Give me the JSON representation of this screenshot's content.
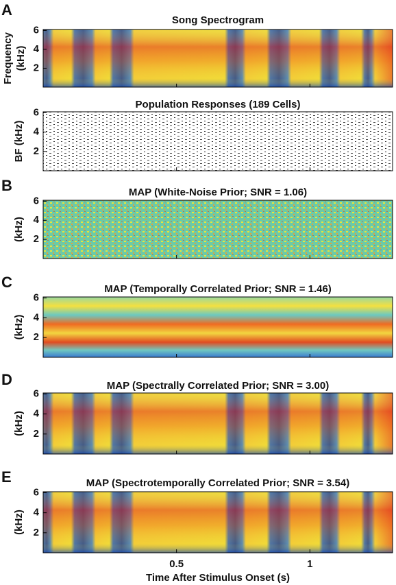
{
  "chart_data": [
    {
      "type": "spectrogram",
      "label": "A",
      "title": "Song Spectrogram",
      "ylabel": [
        "Frequency",
        "(kHz)"
      ],
      "ylim": [
        0,
        6.1
      ],
      "yticks": [
        2,
        4,
        6
      ],
      "xlim": [
        0,
        1.31
      ],
      "xticks": [
        0.5,
        1
      ]
    },
    {
      "type": "raster",
      "title": "Population Responses (189 Cells)",
      "ylabel": [
        "BF (kHz)"
      ],
      "ylim": [
        0,
        6.1
      ],
      "yticks": [
        2,
        4,
        6
      ],
      "xlim": [
        0,
        1.31
      ],
      "xticks": [
        0.5,
        1
      ]
    },
    {
      "type": "spectrogram",
      "label": "B",
      "title": "MAP (White-Noise Prior; SNR = 1.06)",
      "ylabel": [
        "(kHz)"
      ],
      "ylim": [
        0,
        6.1
      ],
      "yticks": [
        2,
        4,
        6
      ],
      "xlim": [
        0,
        1.31
      ],
      "xticks": [
        0.5,
        1
      ]
    },
    {
      "type": "spectrogram",
      "label": "C",
      "title": "MAP (Temporally Correlated Prior; SNR = 1.46)",
      "ylabel": [
        "(kHz)"
      ],
      "ylim": [
        0,
        6.1
      ],
      "yticks": [
        2,
        4,
        6
      ],
      "xlim": [
        0,
        1.31
      ],
      "xticks": [
        0.5,
        1
      ]
    },
    {
      "type": "spectrogram",
      "label": "D",
      "title": "MAP (Spectrally Correlated Prior; SNR = 3.00)",
      "ylabel": [
        "(kHz)"
      ],
      "ylim": [
        0,
        6.1
      ],
      "yticks": [
        2,
        4,
        6
      ],
      "xlim": [
        0,
        1.31
      ],
      "xticks": [
        0.5,
        1
      ]
    },
    {
      "type": "spectrogram",
      "label": "E",
      "title": "MAP (Spectrotemporally Correlated Prior; SNR = 3.54)",
      "ylabel": [
        "(kHz)"
      ],
      "ylim": [
        0,
        6.1
      ],
      "yticks": [
        2,
        4,
        6
      ],
      "xlim": [
        0,
        1.31
      ],
      "xticks": [
        0.5,
        1
      ],
      "xlabel": "Time After Stimulus Onset (s)"
    }
  ]
}
